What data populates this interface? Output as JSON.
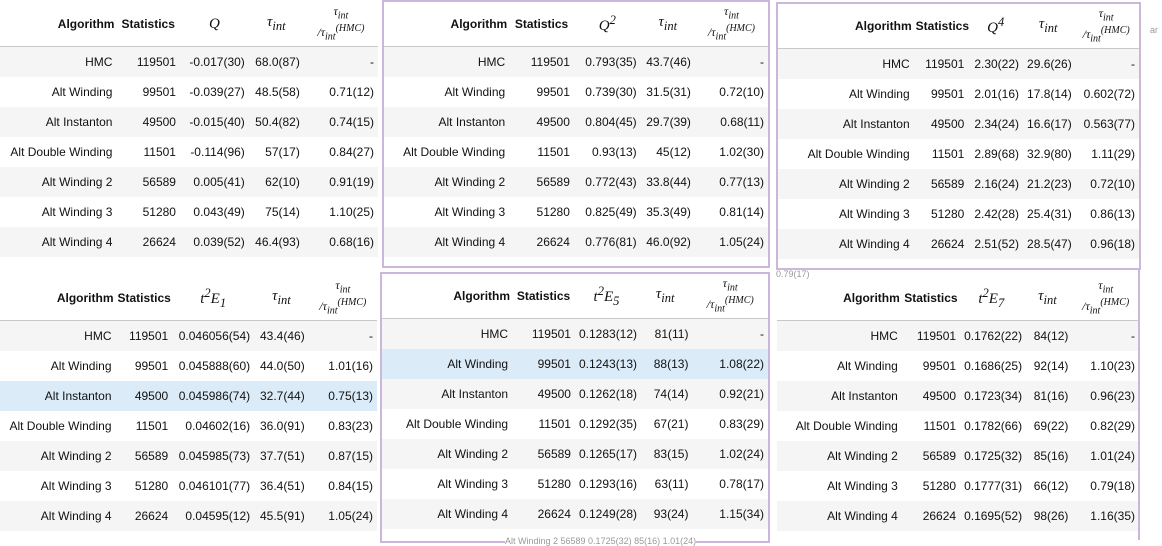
{
  "headers": {
    "algorithm": "Algorithm",
    "statistics": "Statistics",
    "tau": "τ<sub>int</sub>",
    "ratio": "<span>τ<sub>int</sub></span><br>/τ<sub>int</sub><sup>(HMC)</sup>"
  },
  "tables": [
    {
      "metric": "<i>Q</i>",
      "rows": [
        [
          "HMC",
          "119501",
          "-0.017(30)",
          "68.0(87)",
          "-"
        ],
        [
          "Alt Winding",
          "99501",
          "-0.039(27)",
          "48.5(58)",
          "0.71(12)"
        ],
        [
          "Alt Instanton",
          "49500",
          "-0.015(40)",
          "50.4(82)",
          "0.74(15)"
        ],
        [
          "Alt Double Winding",
          "11501",
          "-0.114(96)",
          "57(17)",
          "0.84(27)"
        ],
        [
          "Alt Winding 2",
          "56589",
          "0.005(41)",
          "62(10)",
          "0.91(19)"
        ],
        [
          "Alt Winding 3",
          "51280",
          "0.043(49)",
          "75(14)",
          "1.10(25)"
        ],
        [
          "Alt Winding 4",
          "26624",
          "0.039(52)",
          "46.4(93)",
          "0.68(16)"
        ]
      ],
      "highlight": -1
    },
    {
      "metric": "<i>Q</i><sup>2</sup>",
      "rows": [
        [
          "HMC",
          "119501",
          "0.793(35)",
          "43.7(46)",
          "-"
        ],
        [
          "Alt Winding",
          "99501",
          "0.739(30)",
          "31.5(31)",
          "0.72(10)"
        ],
        [
          "Alt Instanton",
          "49500",
          "0.804(45)",
          "29.7(39)",
          "0.68(11)"
        ],
        [
          "Alt Double Winding",
          "11501",
          "0.93(13)",
          "45(12)",
          "1.02(30)"
        ],
        [
          "Alt Winding 2",
          "56589",
          "0.772(43)",
          "33.8(44)",
          "0.77(13)"
        ],
        [
          "Alt Winding 3",
          "51280",
          "0.825(49)",
          "35.3(49)",
          "0.81(14)"
        ],
        [
          "Alt Winding 4",
          "26624",
          "0.776(81)",
          "46.0(92)",
          "1.05(24)"
        ]
      ],
      "highlight": -1
    },
    {
      "metric": "<i>Q</i><sup>4</sup>",
      "rows": [
        [
          "HMC",
          "119501",
          "2.30(22)",
          "29.6(26)",
          "-"
        ],
        [
          "Alt Winding",
          "99501",
          "2.01(16)",
          "17.8(14)",
          "0.602(72)"
        ],
        [
          "Alt Instanton",
          "49500",
          "2.34(24)",
          "16.6(17)",
          "0.563(77)"
        ],
        [
          "Alt Double Winding",
          "11501",
          "2.89(68)",
          "32.9(80)",
          "1.11(29)"
        ],
        [
          "Alt Winding 2",
          "56589",
          "2.16(24)",
          "21.2(23)",
          "0.72(10)"
        ],
        [
          "Alt Winding 3",
          "51280",
          "2.42(28)",
          "25.4(31)",
          "0.86(13)"
        ],
        [
          "Alt Winding 4",
          "26624",
          "2.51(52)",
          "28.5(47)",
          "0.96(18)"
        ]
      ],
      "highlight": -1
    },
    {
      "metric": "<i>t</i><sup>2</sup><i>E</i><sub>1</sub>",
      "rows": [
        [
          "HMC",
          "119501",
          "0.046056(54)",
          "43.4(46)",
          "-"
        ],
        [
          "Alt Winding",
          "99501",
          "0.045888(60)",
          "44.0(50)",
          "1.01(16)"
        ],
        [
          "Alt Instanton",
          "49500",
          "0.045986(74)",
          "32.7(44)",
          "0.75(13)"
        ],
        [
          "Alt Double Winding",
          "11501",
          "0.04602(16)",
          "36.0(91)",
          "0.83(23)"
        ],
        [
          "Alt Winding 2",
          "56589",
          "0.045985(73)",
          "37.7(51)",
          "0.87(15)"
        ],
        [
          "Alt Winding 3",
          "51280",
          "0.046101(77)",
          "36.4(51)",
          "0.84(15)"
        ],
        [
          "Alt Winding 4",
          "26624",
          "0.04595(12)",
          "45.5(91)",
          "1.05(24)"
        ]
      ],
      "highlight": 2
    },
    {
      "metric": "<i>t</i><sup>2</sup><i>E</i><sub>5</sub>",
      "rows": [
        [
          "HMC",
          "119501",
          "0.1283(12)",
          "81(11)",
          "-"
        ],
        [
          "Alt Winding",
          "99501",
          "0.1243(13)",
          "88(13)",
          "1.08(22)"
        ],
        [
          "Alt Instanton",
          "49500",
          "0.1262(18)",
          "74(14)",
          "0.92(21)"
        ],
        [
          "Alt Double Winding",
          "11501",
          "0.1292(35)",
          "67(21)",
          "0.83(29)"
        ],
        [
          "Alt Winding 2",
          "56589",
          "0.1265(17)",
          "83(15)",
          "1.02(24)"
        ],
        [
          "Alt Winding 3",
          "51280",
          "0.1293(16)",
          "63(11)",
          "0.78(17)"
        ],
        [
          "Alt Winding 4",
          "26624",
          "0.1249(28)",
          "93(24)",
          "1.15(34)"
        ]
      ],
      "highlight": 1
    },
    {
      "metric": "<i>t</i><sup>2</sup><i>E</i><sub>7</sub>",
      "rows": [
        [
          "HMC",
          "119501",
          "0.1762(22)",
          "84(12)",
          "-"
        ],
        [
          "Alt Winding",
          "99501",
          "0.1686(25)",
          "92(14)",
          "1.10(23)"
        ],
        [
          "Alt Instanton",
          "49500",
          "0.1723(34)",
          "81(16)",
          "0.96(23)"
        ],
        [
          "Alt Double Winding",
          "11501",
          "0.1782(66)",
          "69(22)",
          "0.82(29)"
        ],
        [
          "Alt Winding 2",
          "56589",
          "0.1725(32)",
          "85(16)",
          "1.01(24)"
        ],
        [
          "Alt Winding 3",
          "51280",
          "0.1777(31)",
          "66(12)",
          "0.79(18)"
        ],
        [
          "Alt Winding 4",
          "26624",
          "0.1695(52)",
          "98(26)",
          "1.16(35)"
        ]
      ],
      "highlight": -1
    }
  ],
  "fragments": {
    "top": "0.79(17)",
    "bottom": "Alt Winding 2   56589   0.1725(32)   85(16)   1.01(24)",
    "edge": "ar"
  },
  "colors": {
    "frame": "#cdb6dc",
    "stripe": "#f5f5f5",
    "highlight": "#dcebf8"
  }
}
